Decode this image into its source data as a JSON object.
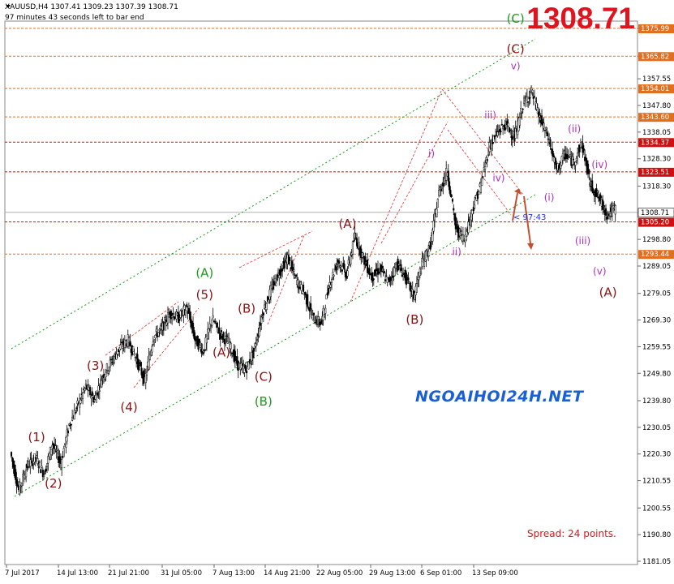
{
  "header": {
    "symbol_line": "XAUUSD,H4  1307.41 1309.23 1307.39 1308.71",
    "timer_line": "97 minutes 43 seconds left to bar end"
  },
  "big_price": "1308.71",
  "watermark": "NGOAIHOI24H.NET",
  "spread_text": "Spread: 24 points.",
  "countdown_text": "< 97:43",
  "colors": {
    "bull": "#000000",
    "grid": "#c8c8c8",
    "orange_level": "#e07020",
    "red_level": "#d01010",
    "green_channel": "#119911",
    "maroon": "#8b1010",
    "green": "#1d9a1d",
    "purple": "#b030c0",
    "arrow": "#c05030"
  },
  "chart_data": {
    "type": "candlestick",
    "title": "XAUUSD,H4",
    "ylim": [
      1181.05,
      1380.0
    ],
    "y_ticks": [
      "1375.99",
      "1365.82",
      "1357.55",
      "1347.80",
      "1338.05",
      "1328.30",
      "1318.30",
      "1308.71",
      "1298.80",
      "1289.05",
      "1279.05",
      "1269.30",
      "1259.55",
      "1249.80",
      "1239.80",
      "1230.05",
      "1220.30",
      "1210.55",
      "1200.55",
      "1190.80",
      "1181.05"
    ],
    "x_ticks": [
      "7 Jul 2017",
      "14 Jul 13:00",
      "21 Jul 21:00",
      "31 Jul 05:00",
      "7 Aug 13:00",
      "14 Aug 21:00",
      "22 Aug 05:00",
      "29 Aug 13:00",
      "6 Sep 01:00",
      "13 Sep 09:00"
    ],
    "levels": [
      {
        "price": 1375.99,
        "label": "1375.99",
        "color": "orange"
      },
      {
        "price": 1365.82,
        "label": "1365.82",
        "color": "orange"
      },
      {
        "price": 1354.01,
        "label": "1354.01",
        "color": "orange"
      },
      {
        "price": 1343.6,
        "label": "1343.60",
        "color": "orange"
      },
      {
        "price": 1334.37,
        "label": "1334.37",
        "color": "red"
      },
      {
        "price": 1323.51,
        "label": "1323.51",
        "color": "red"
      },
      {
        "price": 1305.2,
        "label": "1305.20",
        "color": "red"
      },
      {
        "price": 1293.44,
        "label": "1293.44",
        "color": "orange"
      }
    ],
    "current_price": {
      "price": 1308.71,
      "label": "1308.71"
    },
    "price_path": [
      1221,
      1207,
      1216,
      1219,
      1213,
      1224,
      1217,
      1231,
      1238,
      1245,
      1240,
      1249,
      1254,
      1259,
      1262,
      1255,
      1247,
      1263,
      1266,
      1272,
      1270,
      1274,
      1262,
      1258,
      1270,
      1264,
      1261,
      1253,
      1251,
      1258,
      1272,
      1280,
      1287,
      1292,
      1284,
      1279,
      1270,
      1268,
      1283,
      1291,
      1286,
      1300,
      1292,
      1285,
      1288,
      1283,
      1290,
      1285,
      1278,
      1290,
      1297,
      1316,
      1324,
      1303,
      1299,
      1310,
      1319,
      1333,
      1338,
      1341,
      1336,
      1348,
      1353,
      1343,
      1336,
      1324,
      1330,
      1327,
      1334,
      1319,
      1314,
      1308,
      1310
    ],
    "wave_labels": [
      {
        "text": "(1)",
        "color": "maroon",
        "price": 1225,
        "idx": 3
      },
      {
        "text": "(2)",
        "color": "maroon",
        "price": 1208,
        "idx": 5
      },
      {
        "text": "(3)",
        "color": "maroon",
        "price": 1251,
        "idx": 10
      },
      {
        "text": "(4)",
        "color": "maroon",
        "price": 1236,
        "idx": 14
      },
      {
        "text": "(5)",
        "color": "maroon",
        "price": 1277,
        "idx": 23
      },
      {
        "text": "(A)",
        "color": "green",
        "price": 1285,
        "idx": 23
      },
      {
        "text": "(A)",
        "color": "maroon",
        "price": 1256,
        "idx": 25
      },
      {
        "text": "(B)",
        "color": "maroon",
        "price": 1272,
        "idx": 28
      },
      {
        "text": "(C)",
        "color": "maroon",
        "price": 1247,
        "idx": 30
      },
      {
        "text": "(B)",
        "color": "green",
        "price": 1238,
        "idx": 30
      },
      {
        "text": "(A)",
        "color": "maroon",
        "price": 1303,
        "idx": 40
      },
      {
        "text": "(B)",
        "color": "maroon",
        "price": 1268,
        "idx": 48
      },
      {
        "text": "i)",
        "color": "purple",
        "price": 1329,
        "idx": 50
      },
      {
        "text": "ii)",
        "color": "purple",
        "price": 1293,
        "idx": 53
      },
      {
        "text": "iii)",
        "color": "purple",
        "price": 1343,
        "idx": 57
      },
      {
        "text": "iv)",
        "color": "purple",
        "price": 1320,
        "idx": 58
      },
      {
        "text": "v)",
        "color": "purple",
        "price": 1361,
        "idx": 60
      },
      {
        "text": "(C)",
        "color": "maroon",
        "price": 1367,
        "idx": 60
      },
      {
        "text": "(C)",
        "color": "green",
        "price": 1378,
        "idx": 60
      },
      {
        "text": "(ii)",
        "color": "purple",
        "price": 1338,
        "idx": 67
      },
      {
        "text": "(i)",
        "color": "purple",
        "price": 1313,
        "idx": 64
      },
      {
        "text": "(iv)",
        "color": "purple",
        "price": 1325,
        "idx": 70
      },
      {
        "text": "(iii)",
        "color": "purple",
        "price": 1297,
        "idx": 68
      },
      {
        "text": "(v)",
        "color": "purple",
        "price": 1286,
        "idx": 70
      },
      {
        "text": "(A)",
        "color": "maroon",
        "price": 1278,
        "idx": 71
      }
    ]
  }
}
